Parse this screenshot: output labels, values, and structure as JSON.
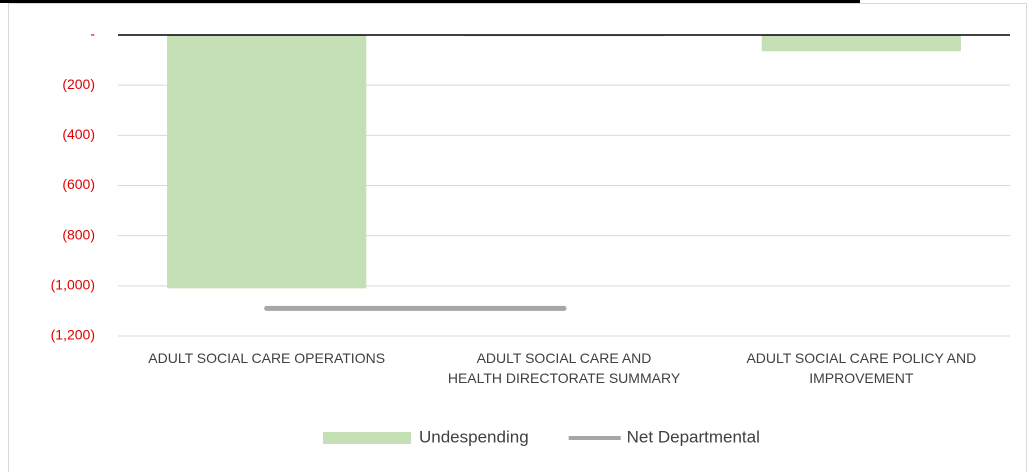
{
  "chart_data": {
    "type": "bar",
    "categories": [
      "ADULT SOCIAL CARE OPERATIONS",
      "ADULT SOCIAL CARE AND\nHEALTH DIRECTORATE SUMMARY",
      "ADULT SOCIAL CARE POLICY AND\nIMPROVEMENT"
    ],
    "series": [
      {
        "name": "Undespending",
        "color": "#c5e0b4",
        "type": "bar",
        "values": [
          -1010,
          -5,
          -65
        ]
      },
      {
        "name": "Net Departmental",
        "color": "#a6a6a6",
        "type": "line",
        "values": [
          -1090,
          -1090,
          null
        ]
      }
    ],
    "ylim": [
      -1200,
      0
    ],
    "yticks": [
      {
        "value": 0,
        "label": "-"
      },
      {
        "value": -200,
        "label": "(200)"
      },
      {
        "value": -400,
        "label": "(400)"
      },
      {
        "value": -600,
        "label": "(600)"
      },
      {
        "value": -800,
        "label": "(800)"
      },
      {
        "value": -1000,
        "label": "(1,000)"
      },
      {
        "value": -1200,
        "label": "(1,200)"
      }
    ],
    "grid": true,
    "legend": "bottom"
  }
}
